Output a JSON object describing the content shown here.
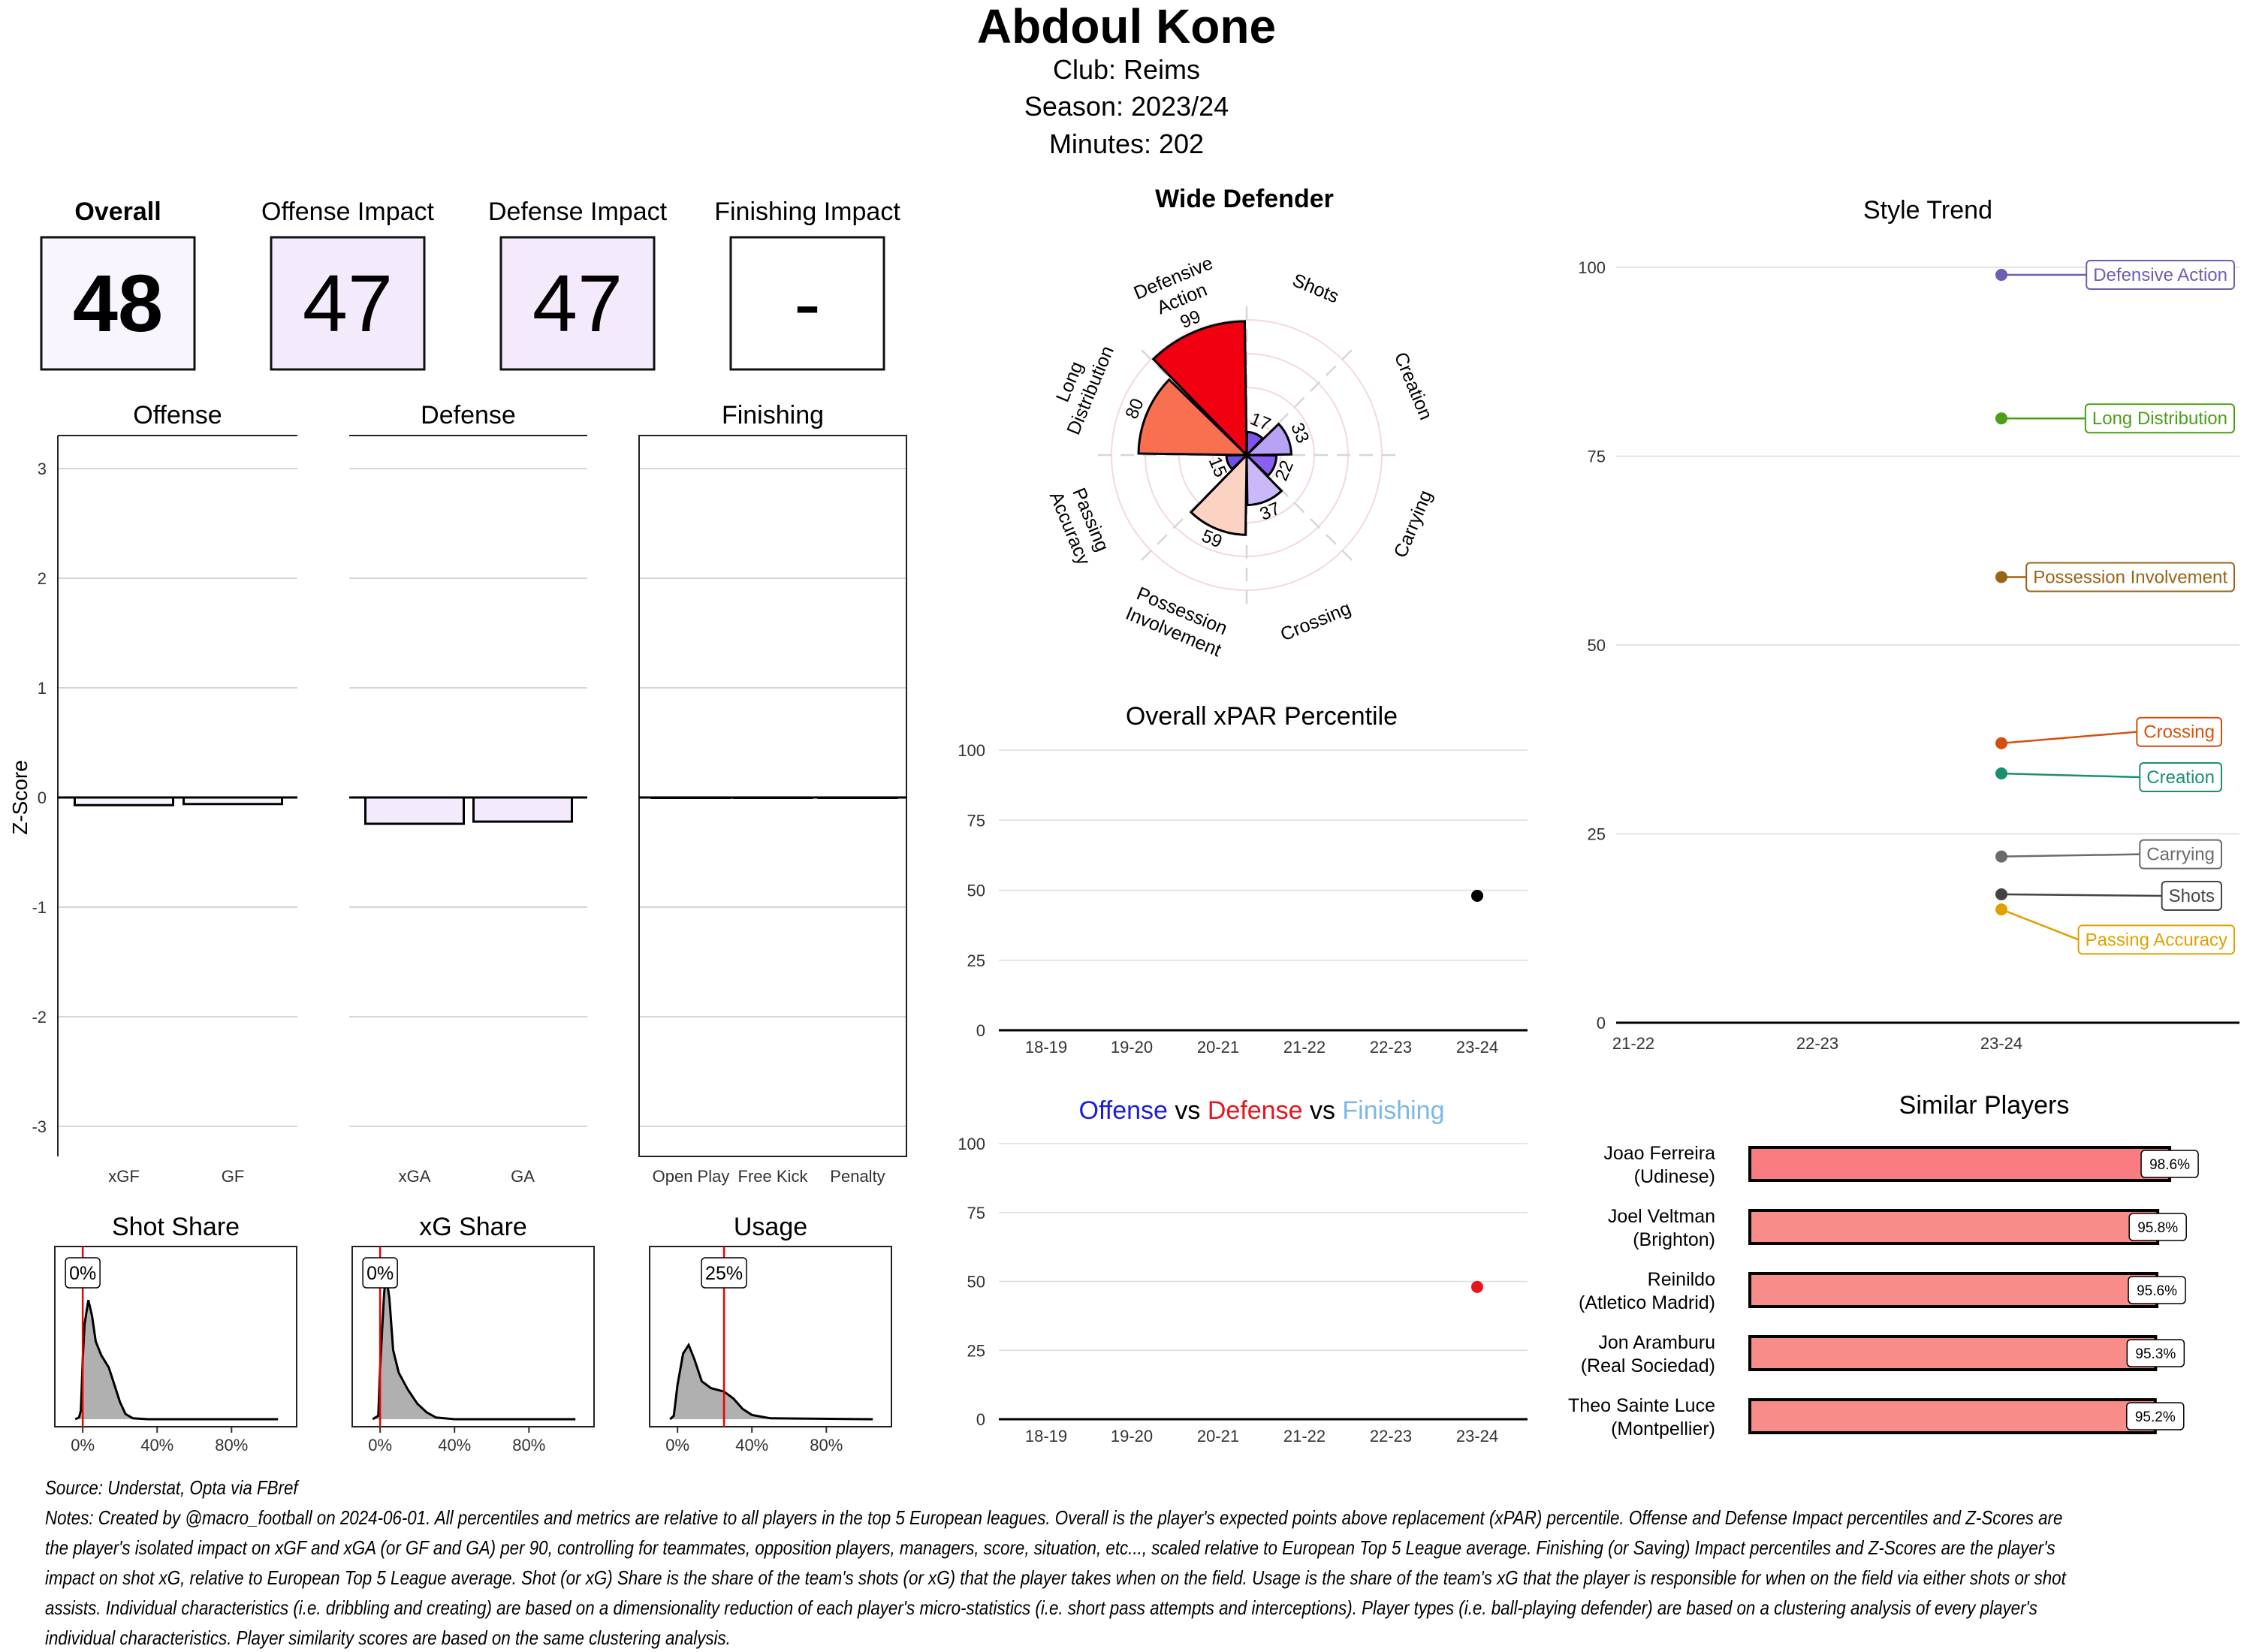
{
  "header": {
    "player_name": "Abdoul Kone",
    "club_line": "Club:  Reims",
    "season_line": "Season:  2023/24",
    "minutes_line": "Minutes:  202"
  },
  "scorecards": [
    {
      "label": "Overall",
      "value": "48",
      "fill": "#f8f5ff",
      "bold": true
    },
    {
      "label": "Offense Impact",
      "value": "47",
      "fill": "#f3eafb",
      "bold": false
    },
    {
      "label": "Defense Impact",
      "value": "47",
      "fill": "#f3eafb",
      "bold": false
    },
    {
      "label": "Finishing Impact",
      "value": "-",
      "fill": "#ffffff",
      "bold": false
    }
  ],
  "chart_data": [
    {
      "id": "zscores",
      "type": "bar",
      "ylabel": "Z-Score",
      "ylim": [
        -3.3,
        3.3
      ],
      "yticks": [
        3,
        2,
        1,
        0,
        -1,
        -2,
        -3
      ],
      "grid": true,
      "panels": [
        {
          "title": "Offense",
          "categories": [
            "xGF",
            "GF"
          ],
          "values": [
            -0.07,
            -0.06
          ],
          "fill": "#f8f5ff"
        },
        {
          "title": "Defense",
          "categories": [
            "xGA",
            "GA"
          ],
          "values": [
            -0.24,
            -0.22
          ],
          "fill": "#f3eafb"
        },
        {
          "title": "Finishing",
          "categories": [
            "Open Play",
            "Free Kick",
            "Penalty"
          ],
          "values": [
            0,
            0,
            0
          ],
          "fill": "#ffffff"
        }
      ]
    },
    {
      "id": "shares",
      "type": "area",
      "xticks": [
        "0%",
        "40%",
        "80%"
      ],
      "xtick_values": [
        0,
        40,
        80
      ],
      "xlim": [
        -15,
        115
      ],
      "panels": [
        {
          "title": "Shot Share",
          "player_value": 0,
          "player_label": "0%",
          "density": [
            [
              -4,
              0
            ],
            [
              -2,
              0.01
            ],
            [
              -1,
              0.05
            ],
            [
              0,
              0.35
            ],
            [
              1,
              0.55
            ],
            [
              3,
              0.69
            ],
            [
              5,
              0.6
            ],
            [
              7,
              0.45
            ],
            [
              10,
              0.37
            ],
            [
              14,
              0.3
            ],
            [
              17,
              0.2
            ],
            [
              20,
              0.1
            ],
            [
              23,
              0.03
            ],
            [
              27,
              0.005
            ],
            [
              35,
              0
            ],
            [
              105,
              0
            ]
          ]
        },
        {
          "title": "xG Share",
          "player_value": 0,
          "player_label": "0%",
          "density": [
            [
              -4,
              0
            ],
            [
              -1,
              0.02
            ],
            [
              0,
              0.3
            ],
            [
              2,
              0.7
            ],
            [
              3,
              0.85
            ],
            [
              5,
              0.7
            ],
            [
              7,
              0.4
            ],
            [
              10,
              0.27
            ],
            [
              15,
              0.17
            ],
            [
              20,
              0.09
            ],
            [
              25,
              0.04
            ],
            [
              30,
              0.01
            ],
            [
              40,
              0
            ],
            [
              105,
              0
            ]
          ]
        },
        {
          "title": "Usage",
          "player_value": 25,
          "player_label": "25%",
          "density": [
            [
              -4,
              0
            ],
            [
              -2,
              0.02
            ],
            [
              0,
              0.2
            ],
            [
              3,
              0.38
            ],
            [
              6,
              0.43
            ],
            [
              9,
              0.35
            ],
            [
              13,
              0.22
            ],
            [
              18,
              0.18
            ],
            [
              25,
              0.16
            ],
            [
              30,
              0.12
            ],
            [
              35,
              0.06
            ],
            [
              40,
              0.025
            ],
            [
              50,
              0.005
            ],
            [
              105,
              0
            ]
          ]
        }
      ]
    },
    {
      "id": "style_polar",
      "type": "bar",
      "title": "Wide Defender",
      "ylim": [
        0,
        100
      ],
      "categories": [
        "Shots",
        "Creation",
        "Carrying",
        "Crossing",
        "Possession Involvement",
        "Passing Accuracy",
        "Long Distribution",
        "Defensive Action"
      ],
      "label_lines": [
        [
          "Shots"
        ],
        [
          "Creation"
        ],
        [
          "Carrying"
        ],
        [
          "Crossing"
        ],
        [
          "Possession",
          "Involvement"
        ],
        [
          "Passing",
          "Accuracy"
        ],
        [
          "Long",
          "Distribution"
        ],
        [
          "Defensive",
          "Action"
        ]
      ],
      "values": [
        17,
        33,
        22,
        37,
        59,
        15,
        80,
        99
      ],
      "colors": [
        "#7d55ea",
        "#b7a2f6",
        "#8b5ff0",
        "#cbb8f8",
        "#fcd2c2",
        "#7050e8",
        "#f8704f",
        "#f00010"
      ]
    },
    {
      "id": "xpar",
      "type": "scatter",
      "title": "Overall xPAR Percentile",
      "x": [
        "18-19",
        "19-20",
        "20-21",
        "21-22",
        "22-23",
        "23-24"
      ],
      "values": [
        null,
        null,
        null,
        null,
        null,
        48
      ],
      "ylim": [
        0,
        100
      ],
      "yticks": [
        0,
        25,
        50,
        75,
        100
      ],
      "color": "#000000"
    },
    {
      "id": "off_def_fin",
      "type": "scatter",
      "title_parts": [
        {
          "text": "Offense",
          "color": "#1c1ce0"
        },
        {
          "text": "vs",
          "color": "#000000"
        },
        {
          "text": "Defense",
          "color": "#e8141e"
        },
        {
          "text": "vs",
          "color": "#000000"
        },
        {
          "text": "Finishing",
          "color": "#7ab8e8"
        }
      ],
      "x": [
        "18-19",
        "19-20",
        "20-21",
        "21-22",
        "22-23",
        "23-24"
      ],
      "values": [
        null,
        null,
        null,
        null,
        null,
        48
      ],
      "ylim": [
        0,
        100
      ],
      "yticks": [
        0,
        25,
        50,
        75,
        100
      ],
      "color": "#e8141e"
    },
    {
      "id": "style_trend",
      "type": "line",
      "title": "Style Trend",
      "x": [
        "21-22",
        "22-23",
        "23-24"
      ],
      "ylim": [
        0,
        100
      ],
      "yticks": [
        0,
        25,
        50,
        75,
        100
      ],
      "series": [
        {
          "name": "Defensive Action",
          "values": [
            null,
            null,
            99
          ],
          "color": "#6a5fb0"
        },
        {
          "name": "Long Distribution",
          "values": [
            null,
            null,
            80
          ],
          "color": "#4a9f17"
        },
        {
          "name": "Possession Involvement",
          "values": [
            null,
            null,
            59
          ],
          "color": "#9a6418"
        },
        {
          "name": "Crossing",
          "values": [
            null,
            null,
            37
          ],
          "color": "#d4500f"
        },
        {
          "name": "Creation",
          "values": [
            null,
            null,
            33
          ],
          "color": "#1a8f6f"
        },
        {
          "name": "Carrying",
          "values": [
            null,
            null,
            22
          ],
          "color": "#6b6b6b"
        },
        {
          "name": "Shots",
          "values": [
            null,
            null,
            17
          ],
          "color": "#444444"
        },
        {
          "name": "Passing Accuracy",
          "values": [
            null,
            null,
            15
          ],
          "color": "#e0a000"
        }
      ]
    },
    {
      "id": "similar_players",
      "type": "bar",
      "title": "Similar Players",
      "categories": [
        {
          "name": "Joao Ferreira",
          "club": "(Udinese)"
        },
        {
          "name": "Joel Veltman",
          "club": "(Brighton)"
        },
        {
          "name": "Reinildo",
          "club": "(Atletico Madrid)"
        },
        {
          "name": "Jon Aramburu",
          "club": "(Real Sociedad)"
        },
        {
          "name": "Theo Sainte Luce",
          "club": "(Montpellier)"
        }
      ],
      "values": [
        98.6,
        95.8,
        95.6,
        95.3,
        95.2
      ],
      "labels": [
        "98.6%",
        "95.8%",
        "95.6%",
        "95.3%",
        "95.2%"
      ],
      "colors": [
        "#f97c80",
        "#f88c88",
        "#f88c88",
        "#f88c88",
        "#f88c88"
      ]
    }
  ],
  "footer": {
    "source": "Source: Understat, Opta via FBref",
    "notes_lines": [
      "Notes: Created by @macro_football on 2024-06-01. All percentiles and metrics are relative to all players in the top 5 European leagues. Overall is the player's expected points above replacement (xPAR) percentile. Offense and Defense Impact percentiles and Z-Scores are",
      "the player's isolated impact on xGF and xGA (or GF and GA) per 90, controlling for teammates, opposition players, managers, score, situation, etc..., scaled relative to European Top 5 League average. Finishing (or Saving) Impact percentiles and Z-Scores are the player's",
      "impact on shot xG, relative to European Top 5 League average. Shot (or xG) Share is the share of the team's shots (or xG) that the player takes when on the field. Usage is the share of the team's xG that the player is responsible for when on the field via either shots or shot",
      "assists. Individual characteristics (i.e. dribbling and creating) are based on a dimensionality reduction of each player's micro-statistics (i.e. short pass attempts and interceptions). Player types (i.e. ball-playing defender) are based on a clustering analysis of every player's",
      "individual characteristics. Player similarity scores are based on the same clustering analysis."
    ]
  }
}
